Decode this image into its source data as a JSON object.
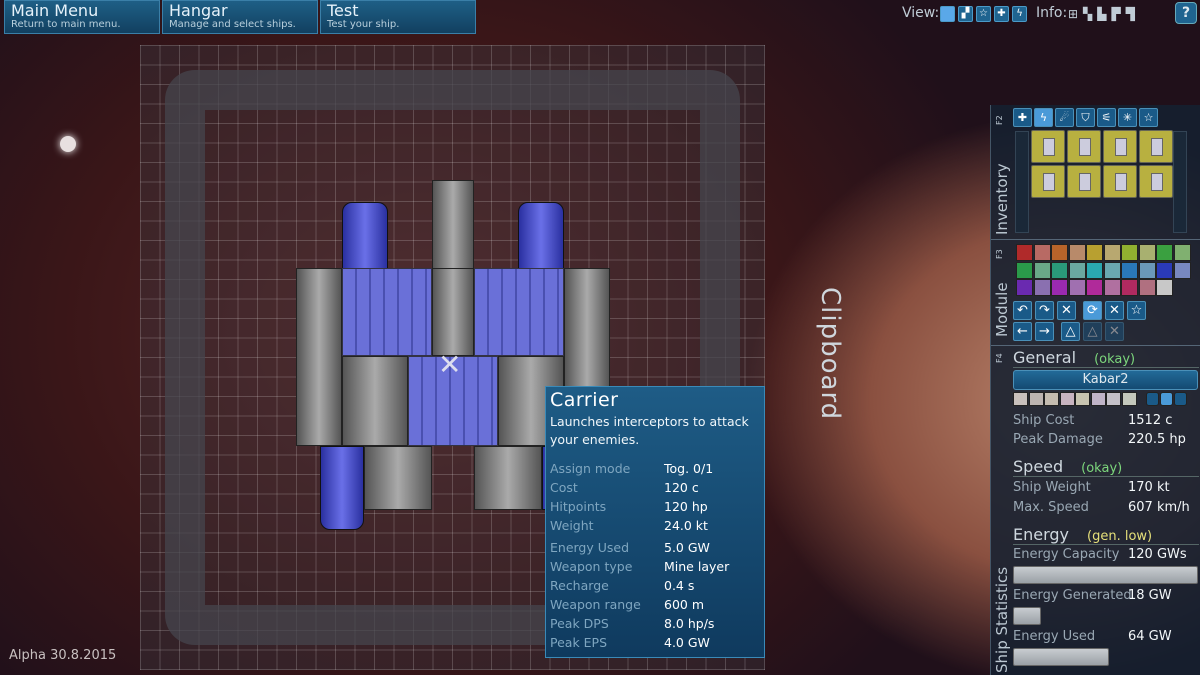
{
  "top_nav": [
    {
      "title": "Main Menu",
      "subtitle": "Return to main menu."
    },
    {
      "title": "Hangar",
      "subtitle": "Manage and select ships."
    },
    {
      "title": "Test",
      "subtitle": "Test your ship."
    }
  ],
  "view": {
    "label": "View:",
    "icons": [
      "block-view-icon",
      "stack-icon",
      "star-icon",
      "crosshair-icon",
      "lightning-icon"
    ]
  },
  "info": {
    "label": "Info:",
    "icons": [
      "tree-icon",
      "cannon-icon",
      "shield-icon",
      "stack-icon",
      "printer-icon"
    ]
  },
  "help_label": "?",
  "clipboard_label": "Clipboard",
  "version": "Alpha 30.8.2015",
  "tooltip": {
    "title": "Carrier",
    "description": "Launches interceptors to attack your enemies.",
    "rows": [
      {
        "k": "Assign mode",
        "v": "Tog. 0/1"
      },
      {
        "k": "Cost",
        "v": "120 c"
      },
      {
        "k": "Hitpoints",
        "v": "120 hp"
      },
      {
        "k": "Weight",
        "v": "24.0 kt"
      },
      {
        "k": "Energy Used",
        "v": "5.0 GW"
      },
      {
        "k": "Weapon type",
        "v": "Mine layer"
      },
      {
        "k": "Recharge",
        "v": "0.4 s"
      },
      {
        "k": "Weapon range",
        "v": "600 m"
      },
      {
        "k": "Peak DPS",
        "v": "8.0 hp/s"
      },
      {
        "k": "Peak EPS",
        "v": "4.0 GW"
      }
    ]
  },
  "inventory": {
    "label": "Inventory",
    "key": "F2",
    "tabs": [
      "✚",
      "ϟ",
      "☄",
      "⛉",
      "⚟",
      "✳",
      "☆"
    ],
    "active_tab": 1
  },
  "module": {
    "label": "Module",
    "key": "F3",
    "colors": [
      "#b02a2a",
      "#b86a64",
      "#b8642a",
      "#b88a6a",
      "#b8a030",
      "#b8a870",
      "#90b030",
      "#a8b070",
      "#3aa040",
      "#80b070",
      "#2a9a4a",
      "#6aa888",
      "#2a9a7a",
      "#6aa8a0",
      "#2aa8b0",
      "#6aa8b0",
      "#2a78b8",
      "#6a98b8",
      "#2a3ab8",
      "#7888c0",
      "#6a2ab0",
      "#8a70b0",
      "#9a2ab0",
      "#a070b0",
      "#b02a9a",
      "#b070a0",
      "#b02a60",
      "#b07080",
      "#c8c8c8"
    ],
    "tools": [
      "↶",
      "↷",
      "✕",
      "⟳",
      "✕",
      "☆",
      "←",
      "→",
      "△",
      "△",
      "✕"
    ]
  },
  "stats": {
    "label": "Ship Statistics",
    "key": "F4",
    "general": {
      "title": "General",
      "status": "(okay)",
      "ship_name": "Kabar2",
      "ship_cost_label": "Ship Cost",
      "ship_cost": "1512 c",
      "peak_damage_label": "Peak Damage",
      "peak_damage": "220.5 hp"
    },
    "speed": {
      "title": "Speed",
      "status": "(okay)",
      "weight_label": "Ship Weight",
      "weight": "170 kt",
      "max_speed_label": "Max. Speed",
      "max_speed": "607 km/h"
    },
    "energy": {
      "title": "Energy",
      "status": "(gen. low)",
      "capacity_label": "Energy Capacity",
      "capacity": "120 GWs",
      "generated_label": "Energy Generated",
      "generated": "18 GW",
      "used_label": "Energy Used",
      "used": "64 GW"
    }
  },
  "colors": {
    "okay": "#7cd67c",
    "warning": "#e6e07a",
    "accent": "#1f6490"
  }
}
